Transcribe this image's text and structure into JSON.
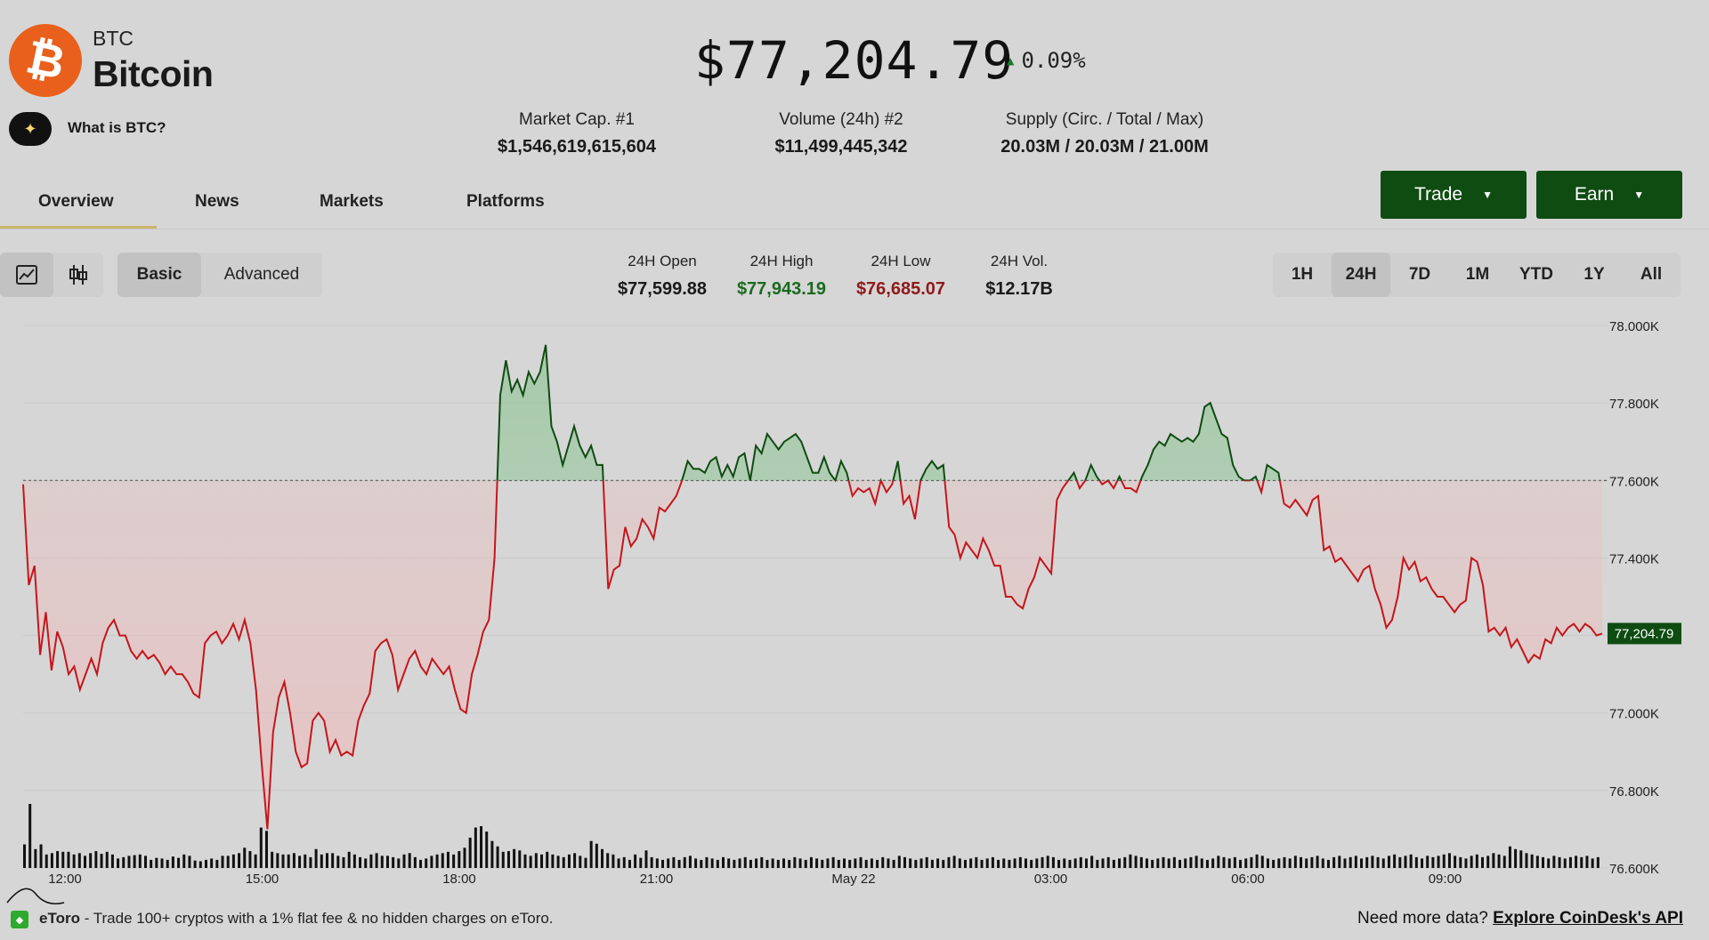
{
  "coin": {
    "logo_glyph": "₿",
    "logo_color": "#e8601c",
    "ticker": "BTC",
    "name": "Bitcoin",
    "ai_button_icon": "sparkle-icon",
    "ai_label": "What is BTC?",
    "price": "$77,204.79",
    "change": "0.09%",
    "change_direction": "up"
  },
  "stats": [
    {
      "label": "Market Cap. #1",
      "value": "$1,546,619,615,604"
    },
    {
      "label": "Volume (24h) #2",
      "value": "$11,499,445,342"
    },
    {
      "label": "Supply (Circ. / Total / Max)",
      "value": "20.03M / 20.03M / 21.00M"
    }
  ],
  "tabs": [
    {
      "label": "Overview",
      "active": true
    },
    {
      "label": "News",
      "active": false
    },
    {
      "label": "Markets",
      "active": false
    },
    {
      "label": "Platforms",
      "active": false
    }
  ],
  "actions": {
    "trade": "Trade",
    "earn": "Earn",
    "brand_color": "#0f4c12"
  },
  "chart_controls": {
    "chart_type_icons": [
      "line-chart-icon",
      "candlestick-icon"
    ],
    "active_type": "line",
    "modes": [
      "Basic",
      "Advanced"
    ],
    "active_mode": "Basic",
    "ranges": [
      "1H",
      "24H",
      "7D",
      "1M",
      "YTD",
      "1Y",
      "All"
    ],
    "active_range": "24H"
  },
  "ohlc": [
    {
      "label": "24H Open",
      "value": "$77,599.88",
      "color": "#1a1a1a"
    },
    {
      "label": "24H High",
      "value": "$77,943.19",
      "color": "#1a6b1f"
    },
    {
      "label": "24H Low",
      "value": "$76,685.07",
      "color": "#8e1a1a"
    },
    {
      "label": "24H Vol.",
      "value": "$12.17B",
      "color": "#1a1a1a"
    }
  ],
  "chart_data": {
    "type": "line",
    "baseline": 77599.88,
    "ylim": [
      76600,
      78000
    ],
    "yticks": [
      "78.000K",
      "77.800K",
      "77.600K",
      "77.400K",
      "77.200K",
      "77.000K",
      "76.800K",
      "76.600K"
    ],
    "ytick_values": [
      78000,
      77800,
      77600,
      77400,
      77200,
      77000,
      76800,
      76600
    ],
    "xticks": [
      "12:00",
      "15:00",
      "18:00",
      "21:00",
      "May 22",
      "03:00",
      "06:00",
      "09:00"
    ],
    "current_value_label": "77,204.79",
    "up_color": "#0f4c12",
    "down_color": "#c4161c",
    "prices": [
      77590,
      77330,
      77380,
      77150,
      77260,
      77110,
      77210,
      77170,
      77100,
      77120,
      77060,
      77100,
      77140,
      77100,
      77180,
      77220,
      77240,
      77200,
      77200,
      77160,
      77140,
      77160,
      77140,
      77150,
      77130,
      77100,
      77120,
      77100,
      77100,
      77080,
      77050,
      77040,
      77180,
      77200,
      77210,
      77180,
      77200,
      77230,
      77190,
      77240,
      77180,
      77060,
      76870,
      76700,
      76950,
      77040,
      77080,
      77000,
      76900,
      76860,
      76870,
      76980,
      77000,
      76980,
      76900,
      76930,
      76890,
      76900,
      76890,
      76980,
      77020,
      77050,
      77160,
      77180,
      77190,
      77150,
      77060,
      77100,
      77140,
      77160,
      77120,
      77100,
      77140,
      77120,
      77100,
      77120,
      77060,
      77010,
      77000,
      77100,
      77150,
      77210,
      77240,
      77400,
      77820,
      77910,
      77830,
      77860,
      77820,
      77880,
      77850,
      77880,
      77950,
      77740,
      77700,
      77640,
      77690,
      77740,
      77690,
      77660,
      77690,
      77640,
      77640,
      77320,
      77370,
      77380,
      77480,
      77430,
      77450,
      77500,
      77480,
      77450,
      77530,
      77520,
      77540,
      77560,
      77600,
      77650,
      77630,
      77630,
      77620,
      77650,
      77660,
      77610,
      77640,
      77610,
      77660,
      77670,
      77600,
      77690,
      77670,
      77720,
      77700,
      77680,
      77700,
      77710,
      77720,
      77700,
      77660,
      77620,
      77620,
      77660,
      77620,
      77600,
      77650,
      77620,
      77560,
      77580,
      77570,
      77580,
      77540,
      77600,
      77570,
      77590,
      77650,
      77540,
      77560,
      77500,
      77600,
      77630,
      77650,
      77630,
      77640,
      77480,
      77460,
      77400,
      77440,
      77420,
      77400,
      77450,
      77420,
      77380,
      77380,
      77300,
      77300,
      77280,
      77270,
      77320,
      77350,
      77400,
      77380,
      77360,
      77550,
      77580,
      77600,
      77620,
      77580,
      77600,
      77640,
      77610,
      77590,
      77600,
      77580,
      77610,
      77580,
      77580,
      77570,
      77610,
      77640,
      77680,
      77700,
      77690,
      77720,
      77710,
      77700,
      77710,
      77700,
      77720,
      77790,
      77800,
      77760,
      77720,
      77710,
      77640,
      77610,
      77600,
      77600,
      77610,
      77570,
      77640,
      77630,
      77620,
      77540,
      77530,
      77550,
      77530,
      77510,
      77550,
      77560,
      77420,
      77430,
      77390,
      77400,
      77380,
      77360,
      77340,
      77370,
      77380,
      77320,
      77280,
      77220,
      77240,
      77300,
      77400,
      77370,
      77390,
      77340,
      77350,
      77320,
      77300,
      77300,
      77280,
      77260,
      77280,
      77290,
      77400,
      77390,
      77330,
      77210,
      77220,
      77200,
      77220,
      77170,
      77190,
      77160,
      77130,
      77150,
      77140,
      77190,
      77180,
      77220,
      77200,
      77220,
      77230,
      77210,
      77230,
      77220,
      77200,
      77205
    ],
    "volume": [
      35,
      95,
      28,
      35,
      20,
      22,
      25,
      24,
      24,
      20,
      22,
      18,
      22,
      25,
      21,
      24,
      20,
      14,
      16,
      18,
      19,
      20,
      18,
      12,
      15,
      14,
      12,
      17,
      15,
      20,
      18,
      11,
      10,
      12,
      14,
      12,
      18,
      18,
      20,
      22,
      30,
      25,
      20,
      60,
      55,
      24,
      22,
      20,
      20,
      22,
      18,
      20,
      16,
      28,
      20,
      22,
      22,
      18,
      16,
      24,
      20,
      16,
      14,
      20,
      22,
      18,
      18,
      16,
      14,
      20,
      22,
      16,
      12,
      14,
      18,
      20,
      22,
      24,
      20,
      25,
      30,
      45,
      60,
      62,
      54,
      40,
      32,
      24,
      25,
      28,
      26,
      20,
      18,
      22,
      20,
      24,
      20,
      18,
      16,
      20,
      22,
      18,
      15,
      40,
      36,
      28,
      22,
      20,
      14,
      16,
      12,
      20,
      15,
      26,
      16,
      14,
      12,
      14,
      16,
      12,
      16,
      18,
      14,
      12,
      16,
      14,
      12,
      16,
      14,
      12,
      14,
      16,
      12,
      14,
      16,
      12,
      14,
      12,
      14,
      12,
      16,
      14,
      12,
      16,
      14,
      12,
      14,
      16,
      12,
      14,
      12,
      14,
      16,
      12,
      14,
      12,
      16,
      14,
      12,
      18,
      16,
      14,
      12,
      14,
      16,
      12,
      14,
      12,
      16,
      18,
      14,
      12,
      14,
      16,
      12,
      14,
      16,
      12,
      14,
      12,
      14,
      16,
      14,
      12,
      14,
      16,
      18,
      16,
      12,
      14,
      12,
      14,
      16,
      14,
      18,
      12,
      14,
      16,
      12,
      14,
      16,
      20,
      18,
      16,
      14,
      12,
      14,
      16,
      14,
      16,
      12,
      14,
      16,
      18,
      14,
      12,
      14,
      18,
      16,
      14,
      16,
      12,
      14,
      16,
      20,
      18,
      14,
      12,
      14,
      16,
      14,
      18,
      16,
      14,
      16,
      18,
      14,
      12,
      16,
      18,
      14,
      16,
      18,
      14,
      16,
      18,
      16,
      14,
      18,
      20,
      16,
      18,
      20,
      16,
      14,
      18,
      16,
      18,
      20,
      22,
      18,
      16,
      14,
      18,
      20,
      16,
      18,
      22,
      20,
      18,
      32,
      28,
      26,
      22,
      20,
      18,
      16,
      14,
      18,
      16,
      14,
      16,
      18,
      16,
      18,
      14,
      16
    ]
  },
  "footer": {
    "ad_icon": "etoro-logo-icon",
    "ad_brand": "eToro",
    "ad_text": " - Trade 100+ cryptos with a 1% flat fee & no hidden charges on eToro.",
    "right_prefix": "Need more data? ",
    "right_link": "Explore CoinDesk's API"
  }
}
